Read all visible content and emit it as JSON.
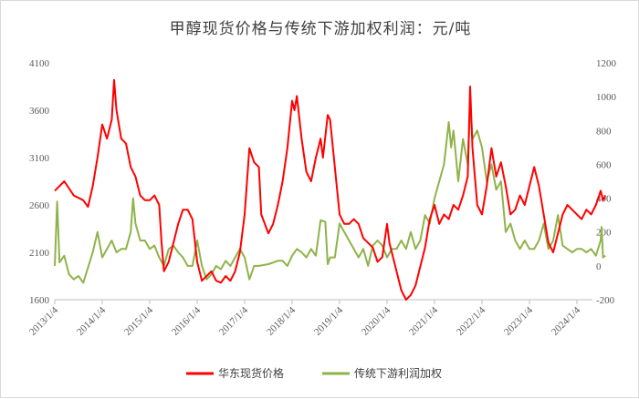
{
  "chart_data": {
    "type": "line",
    "title": "甲醇现货价格与传统下游加权利润：元/吨",
    "x_ticks": [
      "2013/1/4",
      "2014/1/4",
      "2015/1/4",
      "2016/1/4",
      "2017/1/4",
      "2018/1/4",
      "2019/1/4",
      "2020/1/4",
      "2021/1/4",
      "2022/1/4",
      "2023/1/4",
      "2024/1/4"
    ],
    "y_left": {
      "min": 1600,
      "max": 4100,
      "ticks": [
        "1600",
        "2100",
        "2600",
        "3100",
        "3600",
        "4100"
      ]
    },
    "y_right": {
      "min": -200,
      "max": 1200,
      "ticks": [
        "-200",
        "0",
        "200",
        "400",
        "600",
        "800",
        "1000",
        "1200"
      ]
    },
    "legend_position": "bottom",
    "grid": false,
    "series": [
      {
        "name": "华东现货价格",
        "axis": "left",
        "color": "#ff0000",
        "x": [
          2013.0,
          2013.2,
          2013.4,
          2013.6,
          2013.7,
          2013.8,
          2013.9,
          2014.0,
          2014.1,
          2014.2,
          2014.25,
          2014.3,
          2014.4,
          2014.5,
          2014.6,
          2014.7,
          2014.8,
          2014.9,
          2015.0,
          2015.1,
          2015.2,
          2015.25,
          2015.3,
          2015.4,
          2015.5,
          2015.6,
          2015.7,
          2015.8,
          2015.9,
          2016.0,
          2016.1,
          2016.2,
          2016.3,
          2016.4,
          2016.5,
          2016.6,
          2016.7,
          2016.8,
          2016.9,
          2017.0,
          2017.1,
          2017.2,
          2017.3,
          2017.35,
          2017.5,
          2017.6,
          2017.7,
          2017.8,
          2017.9,
          2018.0,
          2018.05,
          2018.1,
          2018.2,
          2018.3,
          2018.4,
          2018.5,
          2018.6,
          2018.65,
          2018.75,
          2018.8,
          2018.9,
          2019.0,
          2019.1,
          2019.2,
          2019.3,
          2019.4,
          2019.5,
          2019.6,
          2019.7,
          2019.8,
          2019.9,
          2020.0,
          2020.05,
          2020.2,
          2020.3,
          2020.4,
          2020.5,
          2020.6,
          2020.7,
          2020.8,
          2020.9,
          2021.0,
          2021.1,
          2021.2,
          2021.3,
          2021.4,
          2021.5,
          2021.6,
          2021.7,
          2021.75,
          2021.8,
          2021.9,
          2022.0,
          2022.1,
          2022.2,
          2022.3,
          2022.4,
          2022.5,
          2022.6,
          2022.7,
          2022.8,
          2022.9,
          2023.0,
          2023.1,
          2023.2,
          2023.3,
          2023.4,
          2023.5,
          2023.6,
          2023.7,
          2023.8,
          2023.9,
          2024.0,
          2024.1,
          2024.2,
          2024.3,
          2024.4,
          2024.5,
          2024.55,
          2024.6
        ],
        "values": [
          2750,
          2850,
          2700,
          2650,
          2580,
          2800,
          3100,
          3450,
          3300,
          3500,
          3920,
          3600,
          3300,
          3250,
          3000,
          2900,
          2700,
          2650,
          2650,
          2700,
          2600,
          2200,
          1900,
          2000,
          2200,
          2400,
          2550,
          2550,
          2450,
          2000,
          1800,
          1850,
          1900,
          1800,
          1780,
          1850,
          1800,
          1900,
          2100,
          2500,
          3200,
          3050,
          3000,
          2500,
          2300,
          2400,
          2600,
          2850,
          3200,
          3700,
          3600,
          3750,
          3300,
          2950,
          2850,
          3100,
          3300,
          3100,
          3550,
          3500,
          3000,
          2500,
          2400,
          2400,
          2450,
          2400,
          2250,
          2200,
          2150,
          2000,
          2050,
          2400,
          2200,
          1900,
          1700,
          1600,
          1650,
          1750,
          1950,
          2150,
          2450,
          2600,
          2400,
          2500,
          2450,
          2600,
          2550,
          2700,
          2900,
          3850,
          3200,
          2600,
          2500,
          2800,
          3200,
          2900,
          3050,
          2800,
          2500,
          2550,
          2700,
          2600,
          2800,
          3000,
          2800,
          2500,
          2200,
          2100,
          2300,
          2500,
          2600,
          2550,
          2500,
          2450,
          2550,
          2500,
          2600,
          2750,
          2650,
          2700
        ]
      },
      {
        "name": "传统下游利润加权",
        "axis": "right",
        "color": "#8fb34a",
        "x": [
          2013.0,
          2013.05,
          2013.1,
          2013.2,
          2013.3,
          2013.4,
          2013.5,
          2013.6,
          2013.8,
          2013.9,
          2014.0,
          2014.1,
          2014.2,
          2014.3,
          2014.4,
          2014.5,
          2014.6,
          2014.65,
          2014.7,
          2014.8,
          2014.9,
          2015.0,
          2015.1,
          2015.2,
          2015.3,
          2015.4,
          2015.5,
          2015.6,
          2015.7,
          2015.8,
          2015.9,
          2016.0,
          2016.1,
          2016.2,
          2016.3,
          2016.4,
          2016.5,
          2016.6,
          2016.7,
          2016.8,
          2016.9,
          2017.0,
          2017.1,
          2017.2,
          2017.3,
          2017.5,
          2017.7,
          2017.8,
          2017.9,
          2018.0,
          2018.1,
          2018.2,
          2018.3,
          2018.4,
          2018.5,
          2018.6,
          2018.7,
          2018.75,
          2018.8,
          2018.9,
          2019.0,
          2019.1,
          2019.2,
          2019.3,
          2019.4,
          2019.5,
          2019.6,
          2019.7,
          2019.8,
          2019.9,
          2020.0,
          2020.1,
          2020.2,
          2020.3,
          2020.4,
          2020.5,
          2020.6,
          2020.7,
          2020.8,
          2020.9,
          2021.0,
          2021.1,
          2021.2,
          2021.3,
          2021.35,
          2021.4,
          2021.5,
          2021.6,
          2021.7,
          2021.75,
          2021.8,
          2021.9,
          2022.0,
          2022.1,
          2022.2,
          2022.3,
          2022.4,
          2022.5,
          2022.6,
          2022.7,
          2022.8,
          2022.9,
          2023.0,
          2023.1,
          2023.2,
          2023.3,
          2023.4,
          2023.5,
          2023.6,
          2023.7,
          2023.8,
          2023.9,
          2024.0,
          2024.1,
          2024.2,
          2024.3,
          2024.4,
          2024.5,
          2024.52,
          2024.55,
          2024.6
        ],
        "values": [
          0,
          380,
          20,
          60,
          -50,
          -80,
          -60,
          -100,
          80,
          200,
          50,
          100,
          150,
          80,
          100,
          100,
          200,
          400,
          250,
          150,
          150,
          100,
          120,
          50,
          0,
          100,
          120,
          80,
          50,
          0,
          0,
          150,
          0,
          -80,
          -50,
          0,
          -20,
          30,
          0,
          50,
          100,
          50,
          -80,
          0,
          0,
          10,
          30,
          30,
          0,
          60,
          100,
          80,
          50,
          100,
          60,
          270,
          260,
          10,
          50,
          50,
          250,
          200,
          150,
          100,
          50,
          100,
          0,
          120,
          150,
          120,
          50,
          100,
          100,
          150,
          100,
          200,
          100,
          150,
          300,
          250,
          400,
          500,
          600,
          850,
          700,
          800,
          500,
          750,
          600,
          950,
          750,
          800,
          700,
          500,
          600,
          450,
          500,
          200,
          250,
          150,
          100,
          150,
          100,
          100,
          150,
          250,
          100,
          150,
          300,
          120,
          100,
          80,
          100,
          100,
          80,
          100,
          60,
          150,
          230,
          50,
          60
        ]
      }
    ]
  }
}
